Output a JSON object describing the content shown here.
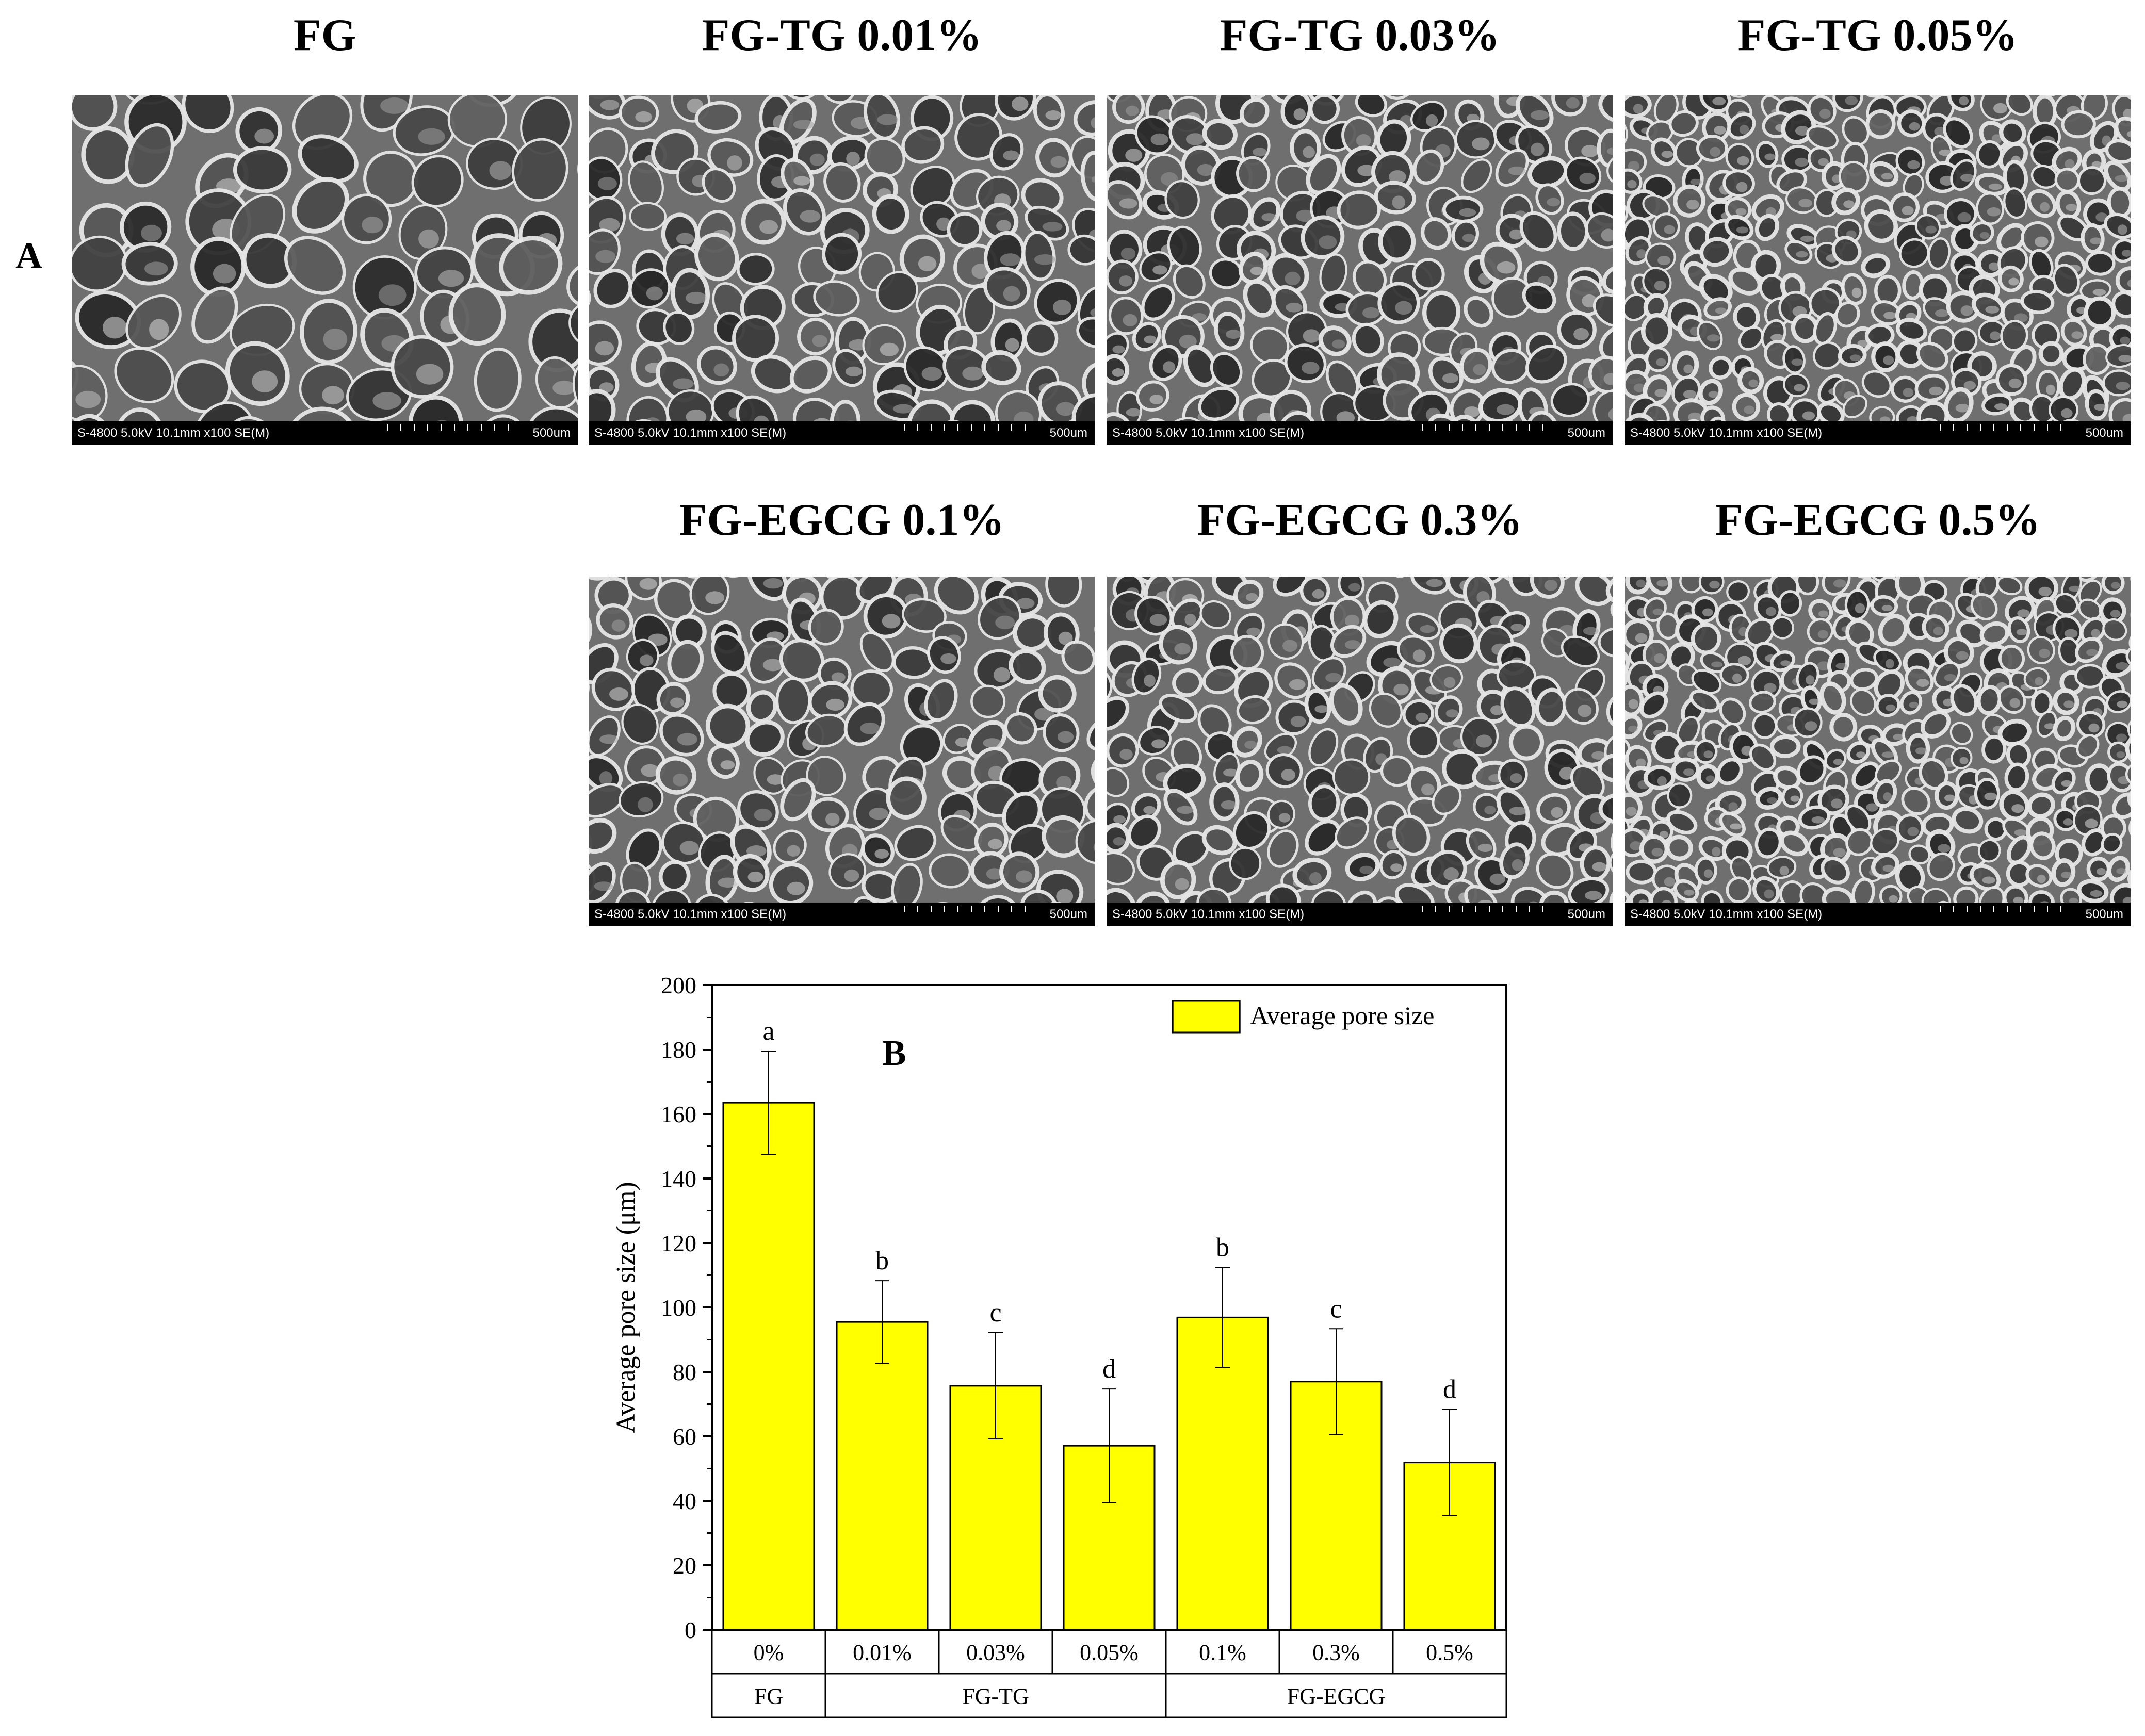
{
  "panel_labels": {
    "a": "A",
    "b": "B"
  },
  "sem_panels": [
    {
      "title": "FG",
      "meta": "S-4800 5.0kV 10.1mm x100 SE(M)",
      "scale": "500um"
    },
    {
      "title": "FG-TG 0.01%",
      "meta": "S-4800 5.0kV 10.1mm x100 SE(M)",
      "scale": "500um"
    },
    {
      "title": "FG-TG 0.03%",
      "meta": "S-4800 5.0kV 10.1mm x100 SE(M)",
      "scale": "500um"
    },
    {
      "title": "FG-TG 0.05%",
      "meta": "S-4800 5.0kV 10.1mm x100 SE(M)",
      "scale": "500um"
    },
    {
      "title": "FG-EGCG 0.1%",
      "meta": "S-4800 5.0kV 10.1mm x100 SE(M)",
      "scale": "500um"
    },
    {
      "title": "FG-EGCG 0.3%",
      "meta": "S-4800 5.0kV 10.1mm x100 SE(M)",
      "scale": "500um"
    },
    {
      "title": "FG-EGCG 0.5%",
      "meta": "S-4800 5.0kV 10.1mm x100 SE(M)",
      "scale": "500um"
    }
  ],
  "chart_data": {
    "type": "bar",
    "categories": [
      "0%",
      "0.01%",
      "0.03%",
      "0.05%",
      "0.1%",
      "0.3%",
      "0.5%"
    ],
    "groups": [
      {
        "label": "FG",
        "span": 1
      },
      {
        "label": "FG-TG",
        "span": 3
      },
      {
        "label": "FG-EGCG",
        "span": 3
      }
    ],
    "series": [
      {
        "name": "Average pore size",
        "values": [
          163.5,
          95.5,
          75.7,
          57.1,
          96.9,
          77.0,
          51.9
        ],
        "errors": [
          16.0,
          12.8,
          16.5,
          17.6,
          15.5,
          16.4,
          16.5
        ],
        "significance": [
          "a",
          "b",
          "c",
          "d",
          "b",
          "c",
          "d"
        ]
      }
    ],
    "ylabel": "Average pore size (μm)",
    "ylim": [
      0,
      200
    ],
    "yticks": [
      0,
      20,
      40,
      60,
      80,
      100,
      120,
      140,
      160,
      180,
      200
    ],
    "legend_placement": "top-right",
    "bar_color": "#ffff00",
    "grid": false
  }
}
